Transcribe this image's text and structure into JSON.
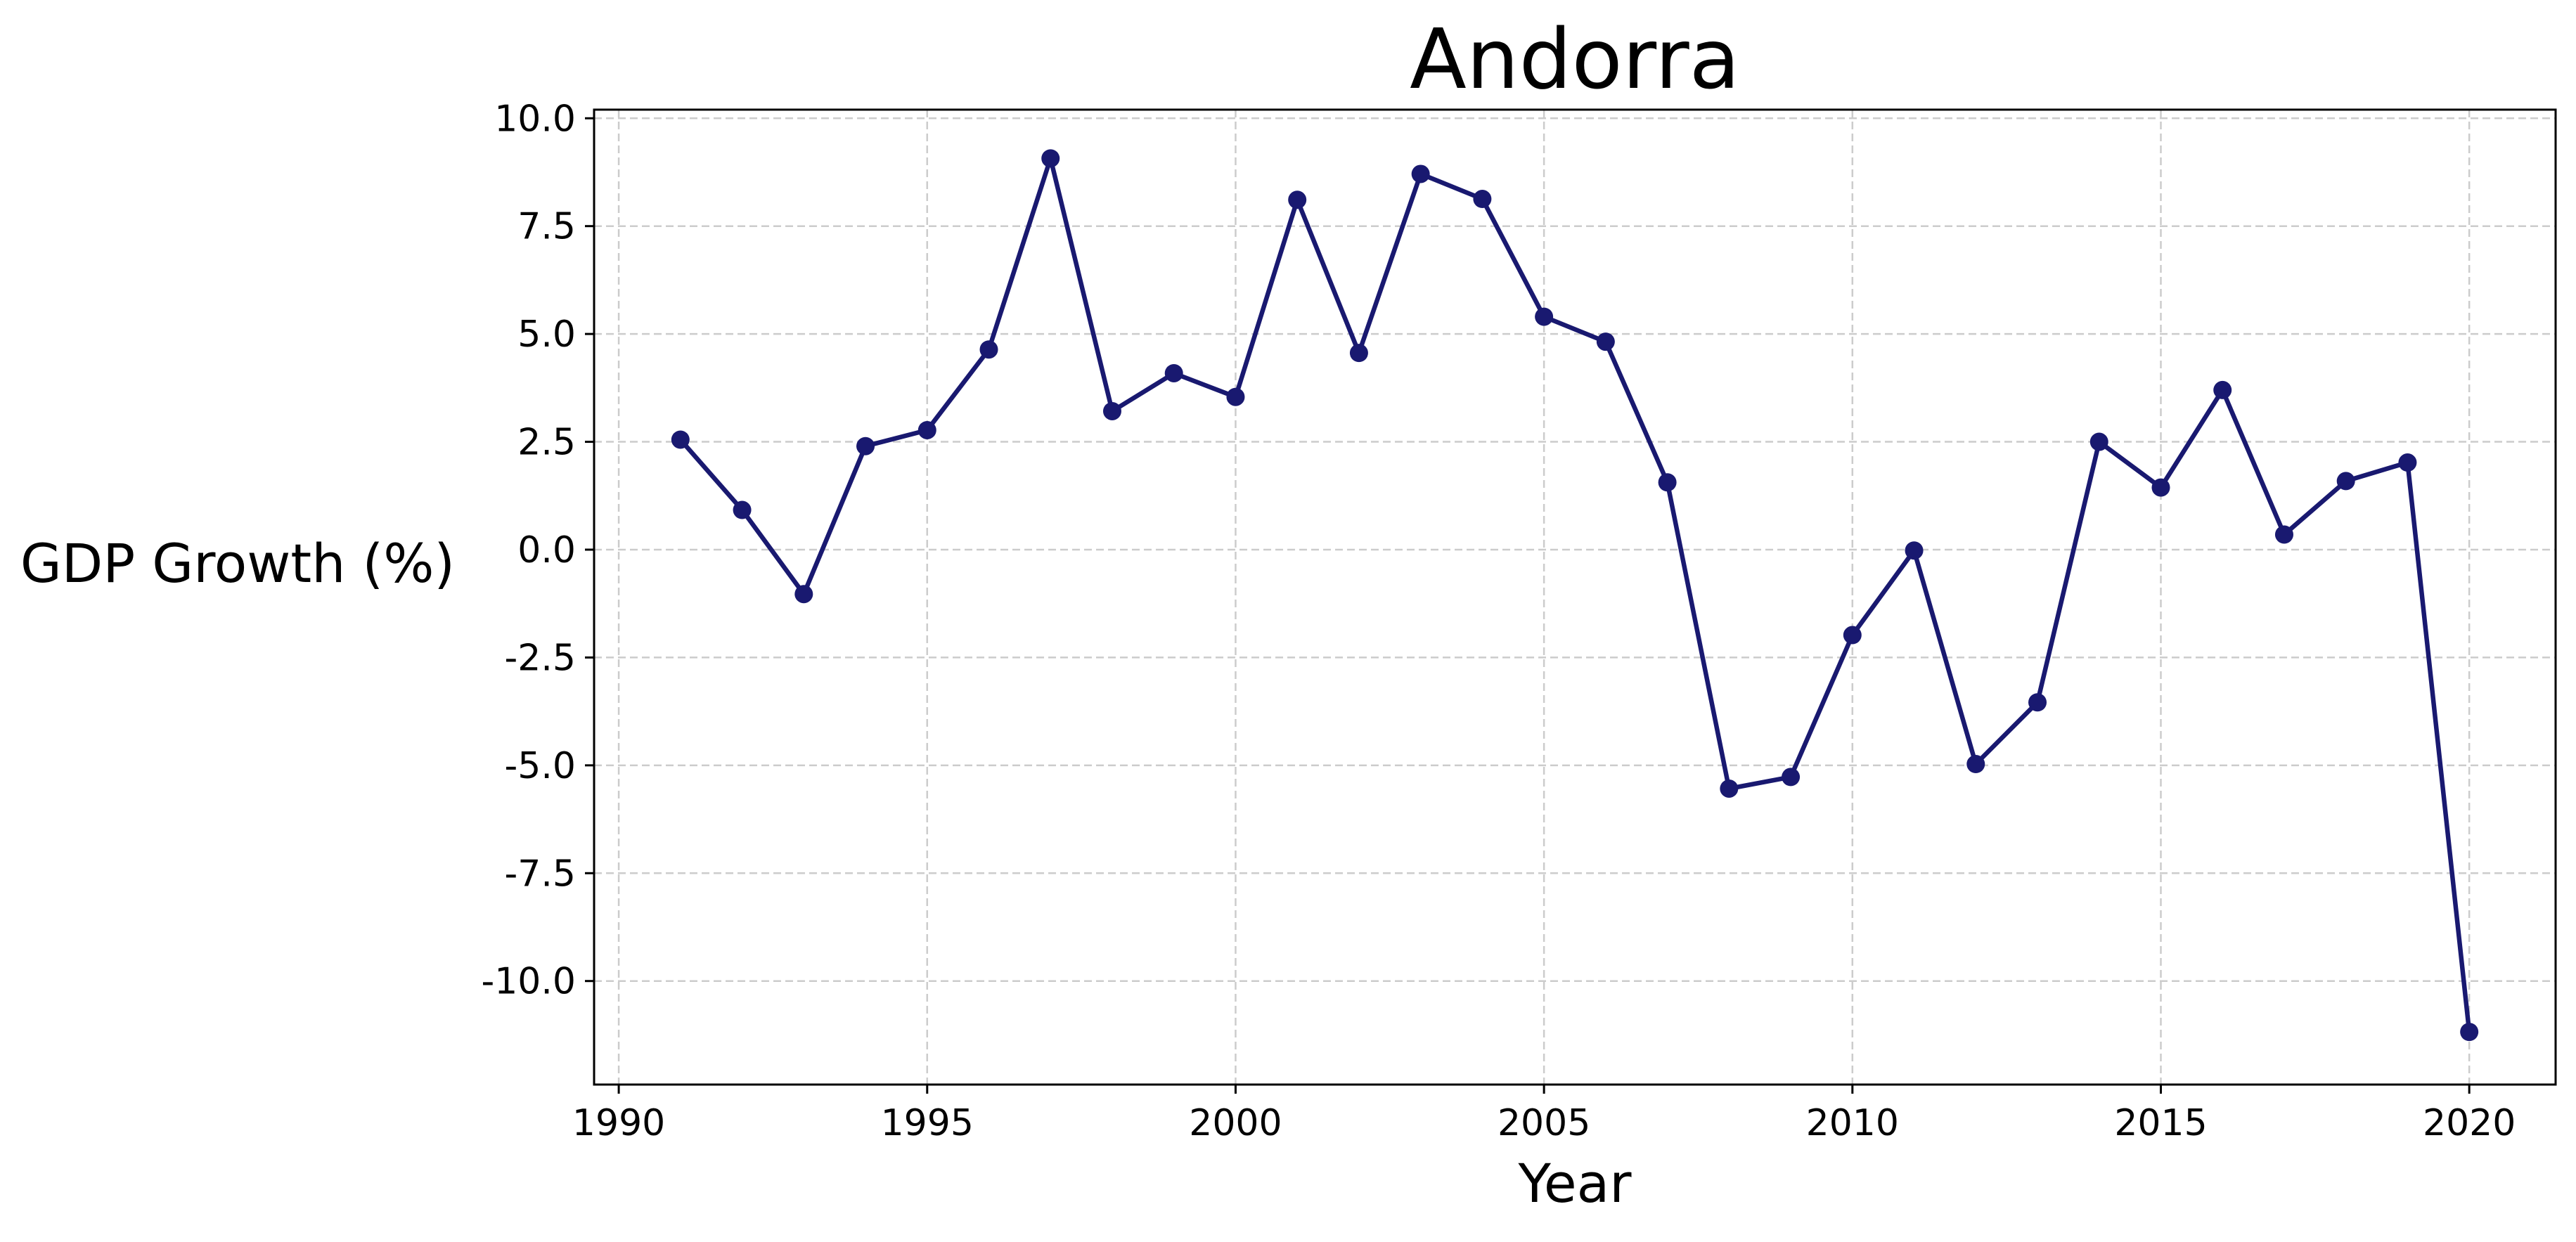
{
  "chart_data": {
    "type": "line",
    "title": "Andorra",
    "xlabel": "Year",
    "ylabel": "GDP Growth (%)",
    "xlim": [
      1989.6,
      2021.4
    ],
    "ylim": [
      -12.4,
      10.2
    ],
    "xticks": [
      1990,
      1995,
      2000,
      2005,
      2010,
      2015,
      2020
    ],
    "yticks": [
      -10.0,
      -7.5,
      -5.0,
      -2.5,
      0.0,
      2.5,
      5.0,
      7.5,
      10.0
    ],
    "ytick_labels": [
      "-10.0",
      "-7.5",
      "-5.0",
      "-2.5",
      "0.0",
      "2.5",
      "5.0",
      "7.5",
      "10.0"
    ],
    "grid": true,
    "series": [
      {
        "color": "#191970",
        "marker": "circle",
        "x": [
          1991,
          1992,
          1993,
          1994,
          1995,
          1996,
          1997,
          1998,
          1999,
          2000,
          2001,
          2002,
          2003,
          2004,
          2005,
          2006,
          2007,
          2008,
          2009,
          2010,
          2011,
          2012,
          2013,
          2014,
          2015,
          2016,
          2017,
          2018,
          2019,
          2020
        ],
        "y": [
          2.55,
          0.92,
          -1.03,
          2.4,
          2.77,
          4.64,
          9.07,
          3.21,
          4.09,
          3.54,
          8.11,
          4.56,
          8.71,
          8.13,
          5.4,
          4.82,
          1.56,
          -5.54,
          -5.27,
          -1.98,
          -0.02,
          -4.97,
          -3.54,
          2.5,
          1.44,
          3.7,
          0.35,
          1.59,
          2.02,
          -11.18
        ]
      }
    ]
  }
}
